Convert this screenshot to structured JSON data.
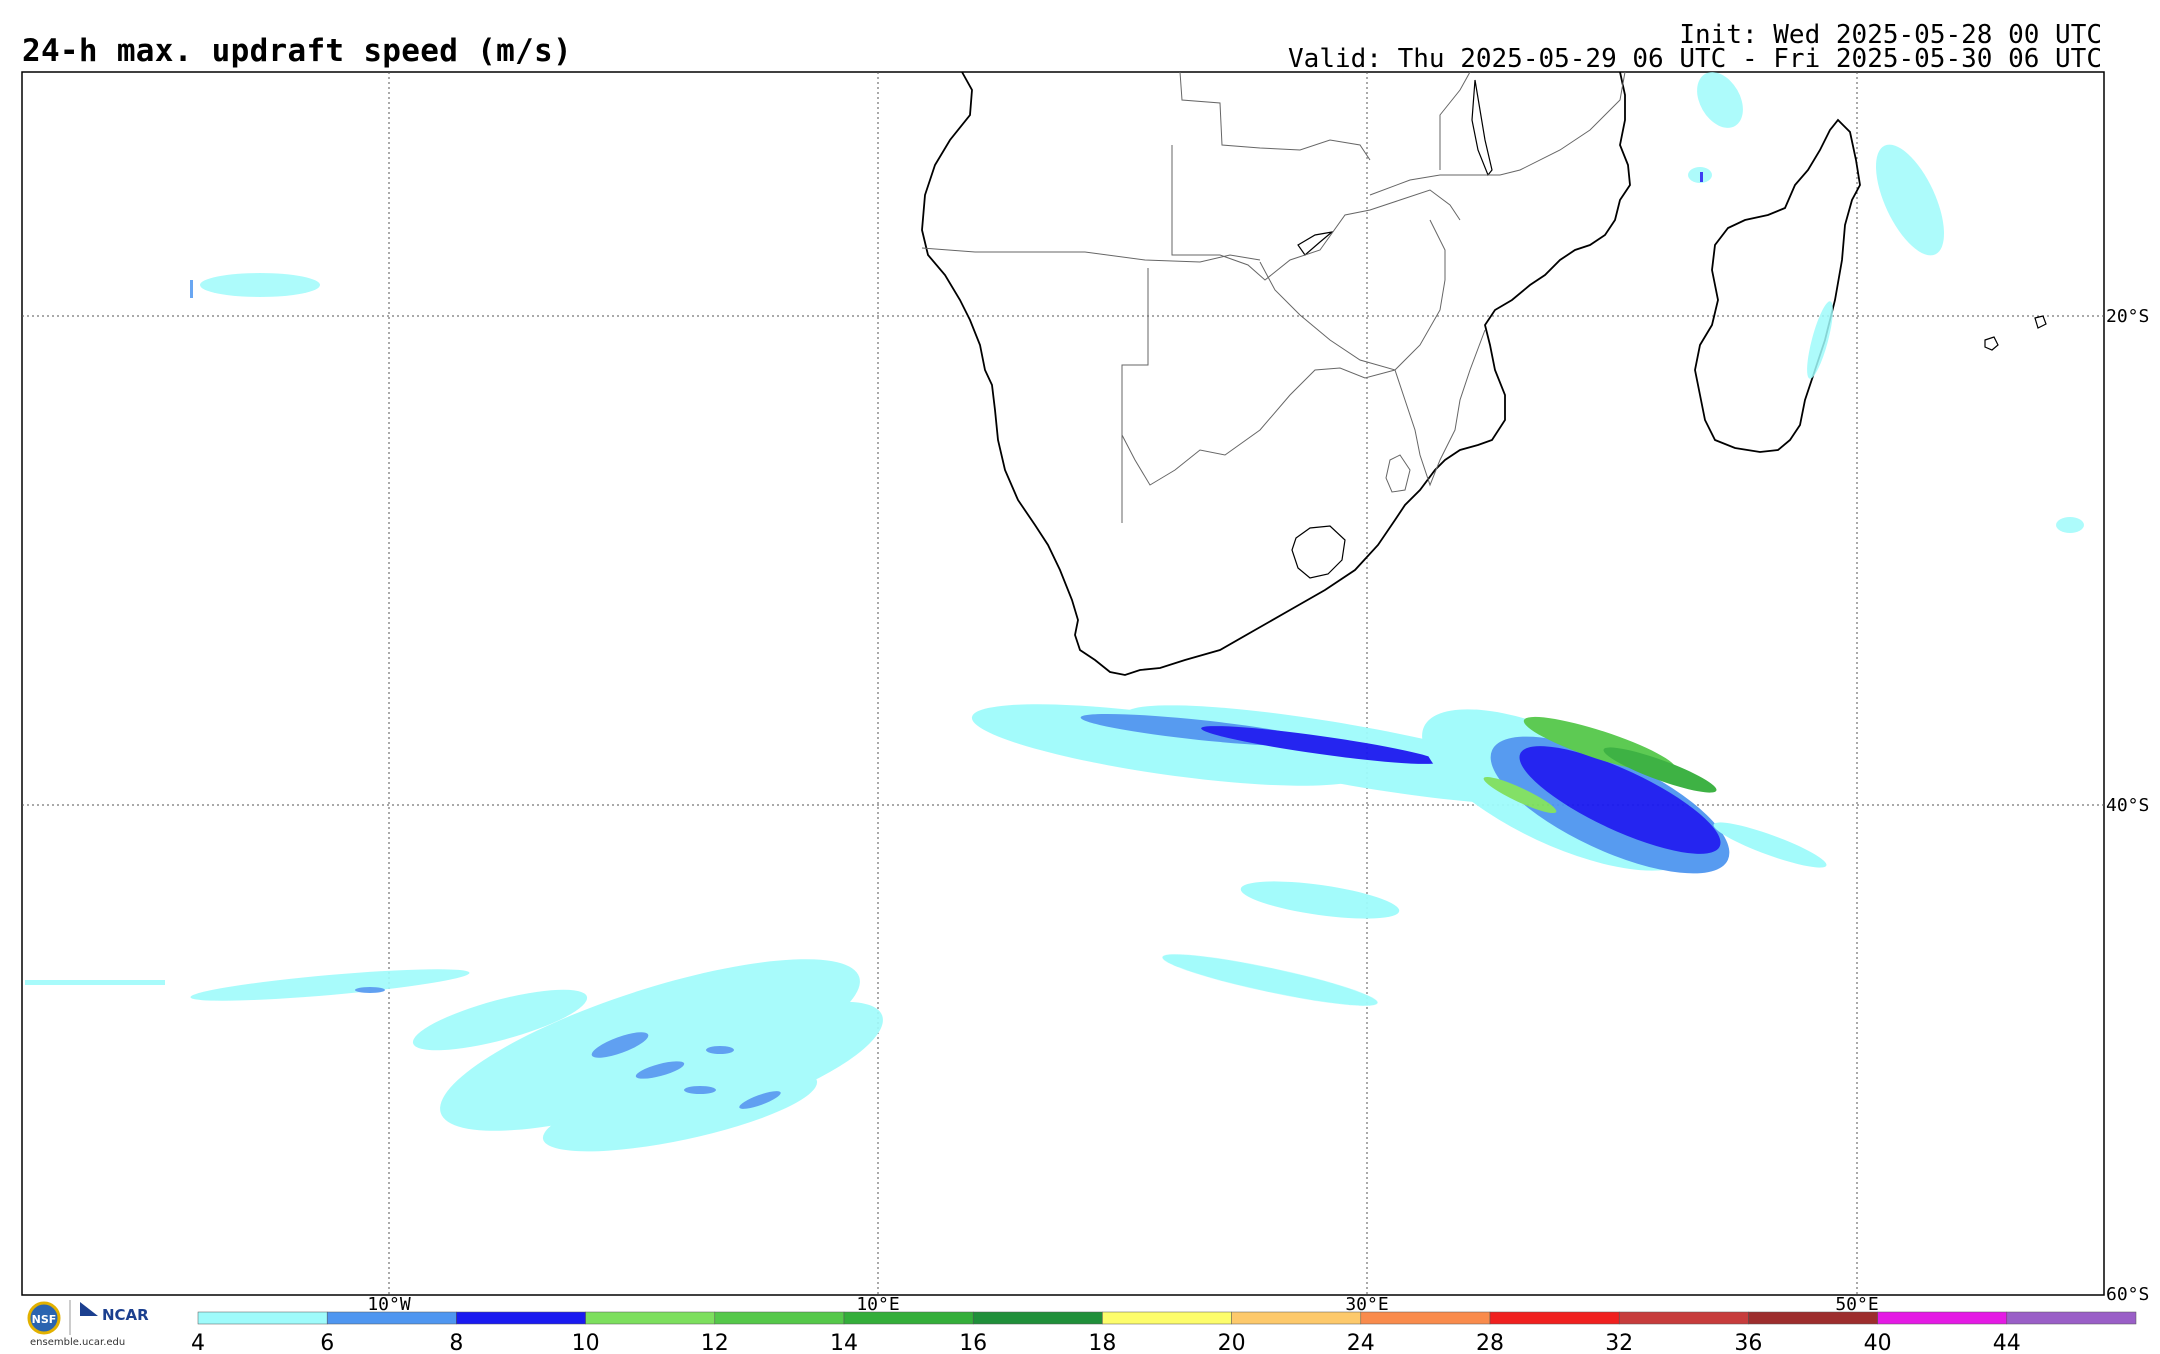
{
  "title": "24-h max. updraft speed (m/s)",
  "init": "Init: Wed 2025-05-28 00 UTC",
  "valid": "Valid: Thu 2025-05-29 06 UTC - Fri 2025-05-30 06 UTC",
  "lon_labels": [
    "10°W",
    "10°E",
    "30°E",
    "50°E"
  ],
  "lat_labels": [
    "20°S",
    "40°S",
    "60°S"
  ],
  "colorbar": {
    "ticks": [
      "4",
      "6",
      "8",
      "10",
      "12",
      "14",
      "16",
      "18",
      "20",
      "24",
      "28",
      "32",
      "36",
      "40",
      "44"
    ],
    "colors": [
      "#9ffbfb",
      "#4f96f0",
      "#1a1af0",
      "#7ddf5e",
      "#55c84a",
      "#34ae3a",
      "#208f3a",
      "#fdfd6b",
      "#fdc96b",
      "#f98b4c",
      "#f0201f",
      "#c73c3c",
      "#9d2d2d",
      "#e41ae4",
      "#9a5fc7"
    ]
  },
  "logo": {
    "org": "NCAR",
    "site": "ensemble.ucar.edu"
  }
}
